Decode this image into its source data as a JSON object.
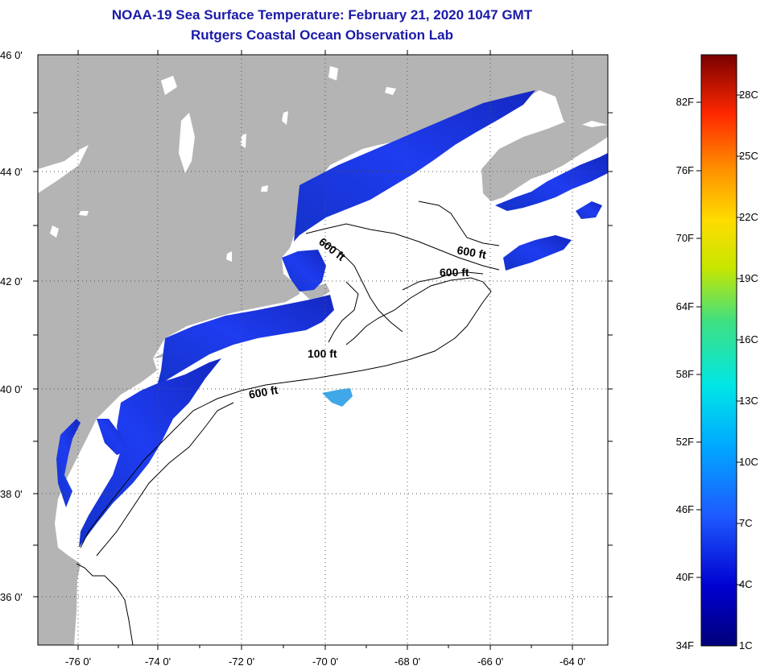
{
  "title": {
    "line1": "NOAA-19 Sea Surface Temperature:  February 21, 2020 1047 GMT",
    "line2": "Rutgers Coastal Ocean Observation Lab"
  },
  "map": {
    "lat_labels": [
      "46 0'",
      "44 0'",
      "42 0'",
      "40 0'",
      "38 0'",
      "36 0'"
    ],
    "lon_labels": [
      "-76 0'",
      "-74 0'",
      "-72 0'",
      "-70 0'",
      "-68 0'",
      "-66 0'",
      "-64 0'"
    ],
    "contour_labels": [
      "600 ft",
      "600 ft",
      "600 ft",
      "100 ft",
      "600 ft"
    ],
    "colors": {
      "land": "#b4b4b4",
      "ocean": "#ffffff",
      "sst_cold": "#1e2de6"
    }
  },
  "colorbar": {
    "fahrenheit": [
      "82F",
      "76F",
      "70F",
      "64F",
      "58F",
      "52F",
      "46F",
      "40F",
      "34F"
    ],
    "celsius": [
      "28C",
      "25C",
      "22C",
      "19C",
      "16C",
      "13C",
      "10C",
      "7C",
      "4C",
      "1C"
    ]
  }
}
